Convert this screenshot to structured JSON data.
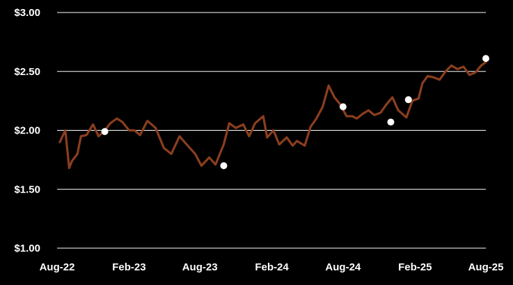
{
  "chart_data": {
    "type": "line",
    "title": "",
    "xlabel": "",
    "ylabel": "",
    "ylim": [
      1.0,
      3.0
    ],
    "yticks": [
      1.0,
      1.5,
      2.0,
      2.5,
      3.0
    ],
    "ytick_labels": [
      "$1.00",
      "$1.50",
      "$2.00",
      "$2.50",
      "$3.00"
    ],
    "xticks": [
      "2022-08-01",
      "2023-02-01",
      "2023-08-01",
      "2024-02-01",
      "2024-08-01",
      "2025-02-01",
      "2025-08-01"
    ],
    "xtick_labels": [
      "Aug-22",
      "Feb-23",
      "Aug-23",
      "Feb-24",
      "Aug-24",
      "Feb-25",
      "Aug-25"
    ],
    "grid": "horizontal",
    "line_color": "#8b3e1e",
    "marker_color": "#ffffff",
    "background": "#000000",
    "grid_color": "#ffffff",
    "series": [
      {
        "x": [
          "2022-08-08",
          "2022-08-22",
          "2022-09-01",
          "2022-09-08",
          "2022-09-22",
          "2022-10-01",
          "2022-10-15",
          "2022-11-01",
          "2022-11-15",
          "2022-12-01",
          "2022-12-15",
          "2023-01-01",
          "2023-01-15",
          "2023-02-01",
          "2023-02-15",
          "2023-03-01",
          "2023-03-20",
          "2023-04-10",
          "2023-05-01",
          "2023-05-20",
          "2023-06-10",
          "2023-07-01",
          "2023-07-20",
          "2023-08-05",
          "2023-08-25",
          "2023-09-10",
          "2023-10-01",
          "2023-10-15",
          "2023-11-01",
          "2023-11-20",
          "2023-12-05",
          "2023-12-20",
          "2024-01-10",
          "2024-01-20",
          "2024-02-05",
          "2024-02-20",
          "2024-03-10",
          "2024-03-25",
          "2024-04-05",
          "2024-04-25",
          "2024-05-10",
          "2024-05-25",
          "2024-06-10",
          "2024-06-25",
          "2024-07-10",
          "2024-07-25",
          "2024-08-10",
          "2024-08-25",
          "2024-09-05",
          "2024-09-20",
          "2024-10-05",
          "2024-10-20",
          "2024-11-05",
          "2024-11-20",
          "2024-12-05",
          "2024-12-20",
          "2025-01-10",
          "2025-01-25",
          "2025-02-10",
          "2025-02-20",
          "2025-03-05",
          "2025-03-20",
          "2025-04-05",
          "2025-04-20",
          "2025-05-05",
          "2025-05-20",
          "2025-06-05",
          "2025-06-20",
          "2025-07-05",
          "2025-07-20",
          "2025-08-01"
        ],
        "values": [
          1.9,
          2.0,
          1.68,
          1.74,
          1.8,
          1.95,
          1.96,
          2.05,
          1.95,
          2.0,
          2.06,
          2.1,
          2.07,
          2.0,
          2.0,
          1.96,
          2.08,
          2.02,
          1.85,
          1.8,
          1.95,
          1.87,
          1.8,
          1.7,
          1.77,
          1.71,
          1.88,
          2.06,
          2.02,
          2.05,
          1.95,
          2.06,
          2.12,
          1.94,
          2.0,
          1.88,
          1.94,
          1.87,
          1.91,
          1.87,
          2.03,
          2.1,
          2.2,
          2.38,
          2.28,
          2.22,
          2.12,
          2.12,
          2.1,
          2.14,
          2.17,
          2.13,
          2.15,
          2.22,
          2.28,
          2.17,
          2.11,
          2.25,
          2.27,
          2.4,
          2.46,
          2.45,
          2.43,
          2.5,
          2.55,
          2.52,
          2.54,
          2.47,
          2.49,
          2.55,
          2.58
        ]
      }
    ],
    "markers": [
      {
        "x": "2022-12-01",
        "y": 1.99
      },
      {
        "x": "2023-10-01",
        "y": 1.7
      },
      {
        "x": "2024-08-01",
        "y": 2.2
      },
      {
        "x": "2024-12-01",
        "y": 2.07
      },
      {
        "x": "2025-01-15",
        "y": 2.26
      },
      {
        "x": "2025-08-01",
        "y": 2.61
      }
    ]
  }
}
